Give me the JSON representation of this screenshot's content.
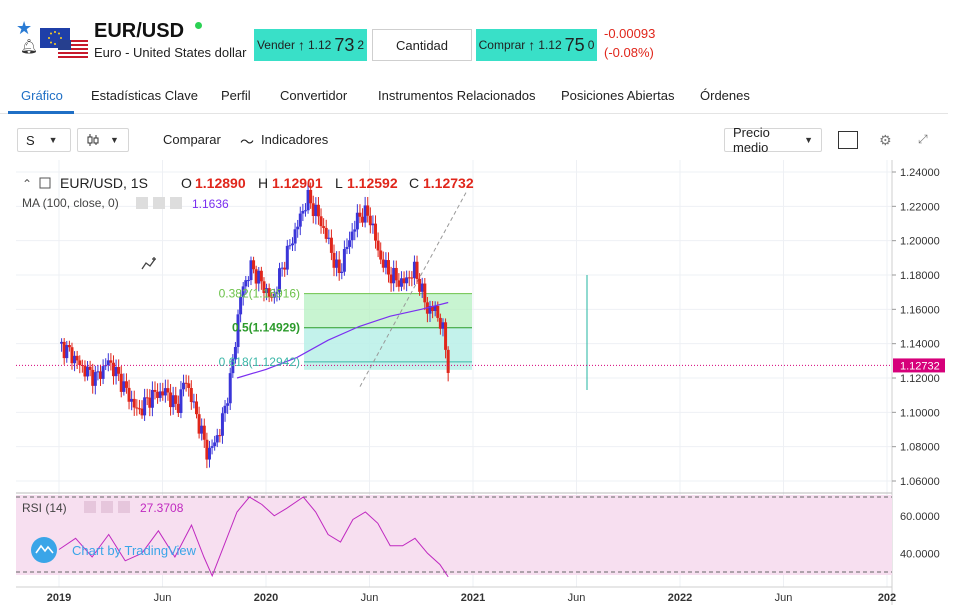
{
  "header": {
    "symbol": "EUR/USD",
    "description": "Euro - United States dollar",
    "sell": {
      "label": "Vender",
      "price_prefix": "1.12",
      "price_big": "73",
      "price_suffix": "2"
    },
    "quantity_label": "Cantidad",
    "buy": {
      "label": "Comprar",
      "price_prefix": "1.12",
      "price_big": "75",
      "price_suffix": "0"
    },
    "change_abs": "-0.00093",
    "change_pct": "(-0.08%)",
    "colors": {
      "trade_button": "#39e0c8",
      "negative": "#e0261b",
      "live": "#2bd153"
    }
  },
  "tabs": [
    {
      "label": "Gráfico",
      "active": true
    },
    {
      "label": "Estadísticas Clave",
      "active": false
    },
    {
      "label": "Perfil",
      "active": false
    },
    {
      "label": "Convertidor",
      "active": false
    },
    {
      "label": "Instrumentos Relacionados",
      "active": false
    },
    {
      "label": "Posiciones Abiertas",
      "active": false
    },
    {
      "label": "Órdenes",
      "active": false
    }
  ],
  "toolbar": {
    "interval": "S",
    "compare_label": "Comparar",
    "indicators_label": "Indicadores",
    "price_type": "Precio medio"
  },
  "legend": {
    "title": "EUR/USD, 1S",
    "o_label": "O",
    "o_value": "1.12890",
    "h_label": "H",
    "h_value": "1.12901",
    "l_label": "L",
    "l_value": "1.12592",
    "c_label": "C",
    "c_value": "1.12732",
    "ma_label": "MA (100, close, 0)",
    "ma_value": "1.1636"
  },
  "rsi": {
    "label": "RSI (14)",
    "value": "27.3708"
  },
  "fib": [
    {
      "label": "0.382(1.16916)",
      "value": 1.16916
    },
    {
      "label": "0.5(1.14929)",
      "value": 1.14929
    },
    {
      "label": "0.618(1.12942)",
      "value": 1.12942
    }
  ],
  "watermark": "Chart by TradingView",
  "chart_data": {
    "type": "candlestick",
    "price_axis_ticks": [
      "1.24000",
      "1.22000",
      "1.20000",
      "1.18000",
      "1.16000",
      "1.14000",
      "1.12000",
      "1.10000",
      "1.08000",
      "1.06000"
    ],
    "price_axis_values": [
      1.24,
      1.22,
      1.2,
      1.18,
      1.16,
      1.14,
      1.12,
      1.1,
      1.08,
      1.06
    ],
    "last_price": "1.12732",
    "last_price_value": 1.12732,
    "rsi_axis_ticks": [
      "60.0000",
      "40.0000"
    ],
    "rsi_axis_values": [
      60,
      40
    ],
    "time_axis_labels": [
      "2019",
      "Jun",
      "2020",
      "Jun",
      "2021",
      "Jun",
      "2022",
      "Jun",
      "202"
    ],
    "anchors": [
      {
        "t": 0.0,
        "p": 1.14
      },
      {
        "t": 0.05,
        "p": 1.135
      },
      {
        "t": 0.12,
        "p": 1.125
      },
      {
        "t": 0.18,
        "p": 1.12
      },
      {
        "t": 0.24,
        "p": 1.13
      },
      {
        "t": 0.3,
        "p": 1.118
      },
      {
        "t": 0.38,
        "p": 1.1
      },
      {
        "t": 0.45,
        "p": 1.11
      },
      {
        "t": 0.52,
        "p": 1.112
      },
      {
        "t": 0.57,
        "p": 1.102
      },
      {
        "t": 0.61,
        "p": 1.12
      },
      {
        "t": 0.66,
        "p": 1.1
      },
      {
        "t": 0.72,
        "p": 1.075
      },
      {
        "t": 0.78,
        "p": 1.09
      },
      {
        "t": 0.83,
        "p": 1.12
      },
      {
        "t": 0.88,
        "p": 1.17
      },
      {
        "t": 0.93,
        "p": 1.185
      },
      {
        "t": 0.98,
        "p": 1.175
      },
      {
        "t": 1.03,
        "p": 1.165
      },
      {
        "t": 1.08,
        "p": 1.185
      },
      {
        "t": 1.14,
        "p": 1.205
      },
      {
        "t": 1.2,
        "p": 1.225
      },
      {
        "t": 1.25,
        "p": 1.215
      },
      {
        "t": 1.3,
        "p": 1.2
      },
      {
        "t": 1.35,
        "p": 1.18
      },
      {
        "t": 1.4,
        "p": 1.2
      },
      {
        "t": 1.45,
        "p": 1.215
      },
      {
        "t": 1.5,
        "p": 1.215
      },
      {
        "t": 1.55,
        "p": 1.19
      },
      {
        "t": 1.6,
        "p": 1.18
      },
      {
        "t": 1.66,
        "p": 1.175
      },
      {
        "t": 1.72,
        "p": 1.183
      },
      {
        "t": 1.78,
        "p": 1.16
      },
      {
        "t": 1.82,
        "p": 1.16
      },
      {
        "t": 1.86,
        "p": 1.145
      },
      {
        "t": 1.88,
        "p": 1.127
      }
    ],
    "ma_points": [
      {
        "t": 0.86,
        "p": 1.12
      },
      {
        "t": 1.0,
        "p": 1.125
      },
      {
        "t": 1.15,
        "p": 1.132
      },
      {
        "t": 1.3,
        "p": 1.142
      },
      {
        "t": 1.45,
        "p": 1.15
      },
      {
        "t": 1.6,
        "p": 1.156
      },
      {
        "t": 1.75,
        "p": 1.16
      },
      {
        "t": 1.88,
        "p": 1.164
      }
    ],
    "rsi_points": [
      {
        "t": 0.0,
        "v": 42
      },
      {
        "t": 0.08,
        "v": 48
      },
      {
        "t": 0.16,
        "v": 38
      },
      {
        "t": 0.24,
        "v": 50
      },
      {
        "t": 0.32,
        "v": 36
      },
      {
        "t": 0.4,
        "v": 40
      },
      {
        "t": 0.48,
        "v": 52
      },
      {
        "t": 0.56,
        "v": 38
      },
      {
        "t": 0.64,
        "v": 55
      },
      {
        "t": 0.7,
        "v": 38
      },
      {
        "t": 0.74,
        "v": 28
      },
      {
        "t": 0.8,
        "v": 45
      },
      {
        "t": 0.86,
        "v": 62
      },
      {
        "t": 0.92,
        "v": 70
      },
      {
        "t": 0.98,
        "v": 66
      },
      {
        "t": 1.04,
        "v": 60
      },
      {
        "t": 1.1,
        "v": 64
      },
      {
        "t": 1.18,
        "v": 70
      },
      {
        "t": 1.24,
        "v": 62
      },
      {
        "t": 1.3,
        "v": 50
      },
      {
        "t": 1.36,
        "v": 46
      },
      {
        "t": 1.42,
        "v": 58
      },
      {
        "t": 1.48,
        "v": 62
      },
      {
        "t": 1.54,
        "v": 56
      },
      {
        "t": 1.6,
        "v": 44
      },
      {
        "t": 1.66,
        "v": 44
      },
      {
        "t": 1.72,
        "v": 48
      },
      {
        "t": 1.78,
        "v": 40
      },
      {
        "t": 1.84,
        "v": 34
      },
      {
        "t": 1.88,
        "v": 27.37
      }
    ]
  }
}
